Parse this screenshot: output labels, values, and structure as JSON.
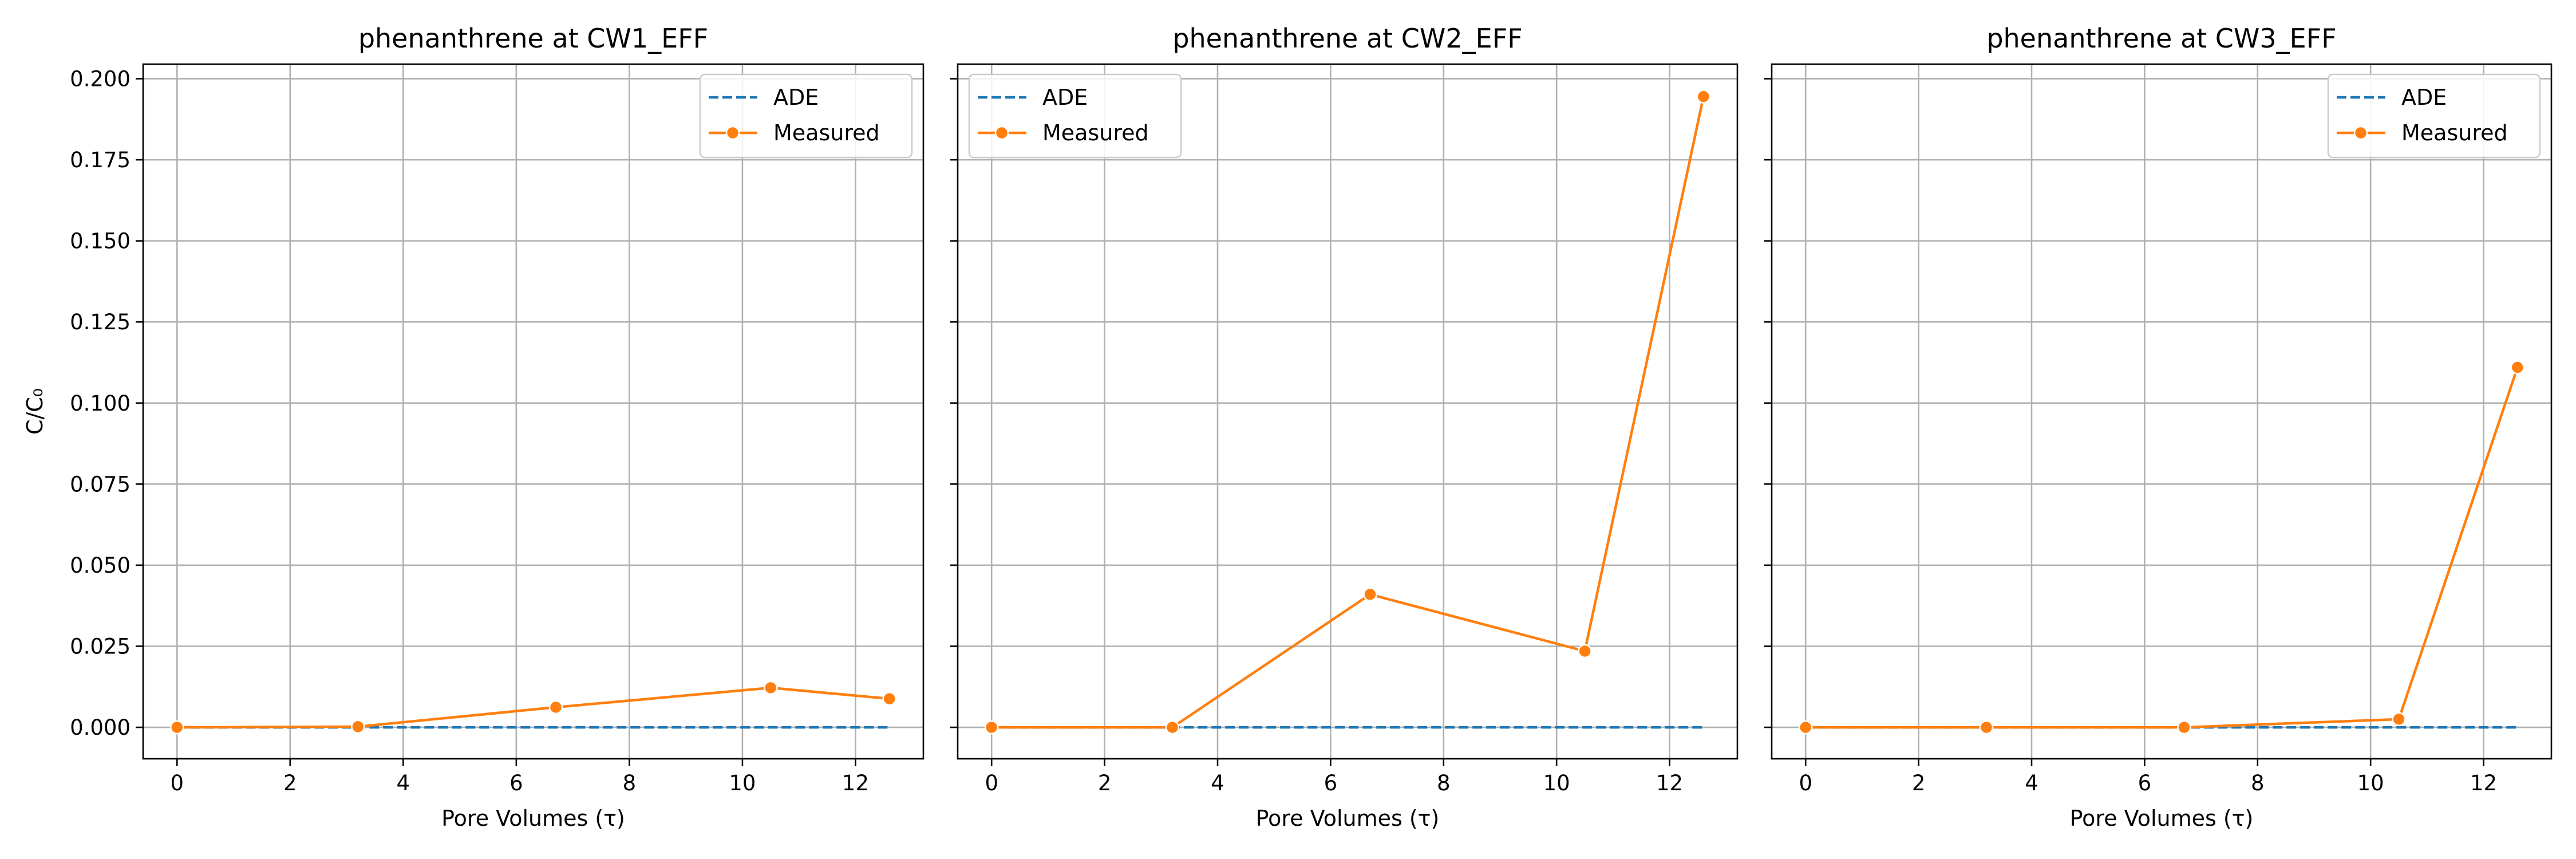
{
  "chart_data": [
    {
      "type": "line",
      "title": "phenanthrene at CW1_EFF",
      "xlabel": "Pore Volumes (τ)",
      "ylabel": "C/C₀",
      "xlim": [
        -0.6,
        13.2
      ],
      "ylim": [
        -0.0097,
        0.2045
      ],
      "xticks": [
        0,
        2,
        4,
        6,
        8,
        10,
        12
      ],
      "yticks": [
        0.0,
        0.025,
        0.05,
        0.075,
        0.1,
        0.125,
        0.15,
        0.175,
        0.2
      ],
      "xtick_labels": [
        "0",
        "2",
        "4",
        "6",
        "8",
        "10",
        "12"
      ],
      "ytick_labels": [
        "0.000",
        "0.025",
        "0.050",
        "0.075",
        "0.100",
        "0.125",
        "0.150",
        "0.175",
        "0.200"
      ],
      "grid": true,
      "legend_position": "top-right",
      "series": [
        {
          "name": "ADE",
          "style": "dashed",
          "color": "#1f77b4",
          "x": [
            0,
            12.6
          ],
          "y": [
            0.0,
            0.0
          ]
        },
        {
          "name": "Measured",
          "style": "solid-markers",
          "color": "#ff7f0e",
          "x": [
            0,
            3.2,
            6.7,
            10.5,
            12.6
          ],
          "y": [
            0.0,
            0.0002,
            0.0062,
            0.0122,
            0.0088
          ]
        }
      ]
    },
    {
      "type": "line",
      "title": "phenanthrene at CW2_EFF",
      "xlabel": "Pore Volumes (τ)",
      "ylabel": "",
      "xlim": [
        -0.6,
        13.2
      ],
      "ylim": [
        -0.0097,
        0.2045
      ],
      "xticks": [
        0,
        2,
        4,
        6,
        8,
        10,
        12
      ],
      "yticks": [
        0.0,
        0.025,
        0.05,
        0.075,
        0.1,
        0.125,
        0.15,
        0.175,
        0.2
      ],
      "xtick_labels": [
        "0",
        "2",
        "4",
        "6",
        "8",
        "10",
        "12"
      ],
      "ytick_labels": [],
      "grid": true,
      "legend_position": "top-left",
      "series": [
        {
          "name": "ADE",
          "style": "dashed",
          "color": "#1f77b4",
          "x": [
            0,
            12.6
          ],
          "y": [
            0.0,
            0.0
          ]
        },
        {
          "name": "Measured",
          "style": "solid-markers",
          "color": "#ff7f0e",
          "x": [
            0,
            3.2,
            6.7,
            10.5,
            12.6
          ],
          "y": [
            0.0,
            0.0,
            0.041,
            0.0235,
            0.1945
          ]
        }
      ]
    },
    {
      "type": "line",
      "title": "phenanthrene at CW3_EFF",
      "xlabel": "Pore Volumes (τ)",
      "ylabel": "",
      "xlim": [
        -0.6,
        13.2
      ],
      "ylim": [
        -0.0097,
        0.2045
      ],
      "xticks": [
        0,
        2,
        4,
        6,
        8,
        10,
        12
      ],
      "yticks": [
        0.0,
        0.025,
        0.05,
        0.075,
        0.1,
        0.125,
        0.15,
        0.175,
        0.2
      ],
      "xtick_labels": [
        "0",
        "2",
        "4",
        "6",
        "8",
        "10",
        "12"
      ],
      "ytick_labels": [],
      "grid": true,
      "legend_position": "top-right",
      "series": [
        {
          "name": "ADE",
          "style": "dashed",
          "color": "#1f77b4",
          "x": [
            0,
            12.6
          ],
          "y": [
            0.0,
            0.0
          ]
        },
        {
          "name": "Measured",
          "style": "solid-markers",
          "color": "#ff7f0e",
          "x": [
            0,
            3.2,
            6.7,
            10.5,
            12.6
          ],
          "y": [
            0.0,
            0.0,
            0.0,
            0.0025,
            0.111
          ]
        }
      ]
    }
  ]
}
